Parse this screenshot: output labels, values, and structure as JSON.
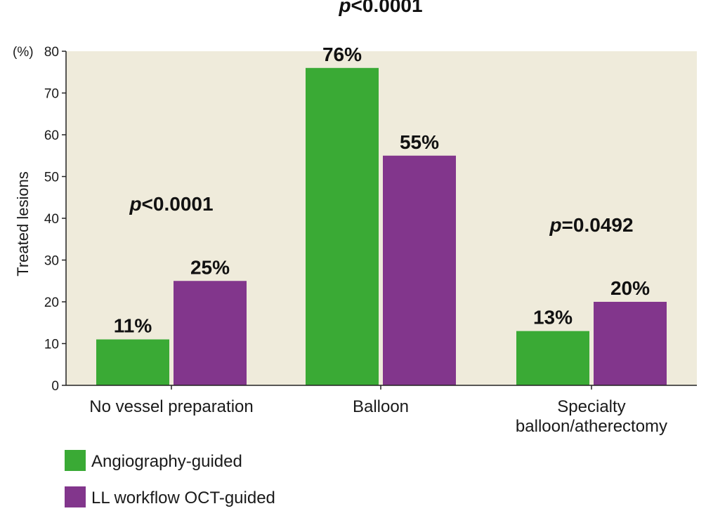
{
  "chart_data": {
    "type": "bar",
    "ylabel": "Treated lesions",
    "y_unit": "(%)",
    "ylim": [
      0,
      80
    ],
    "yticks": [
      0,
      10,
      20,
      30,
      40,
      50,
      60,
      70,
      80
    ],
    "categories": [
      [
        "No vessel preparation"
      ],
      [
        "Balloon"
      ],
      [
        "Specialty",
        "balloon/atherectomy"
      ]
    ],
    "series": [
      {
        "name": "Angiography-guided",
        "color": "#3aaa35",
        "values": [
          11,
          76,
          13
        ],
        "labels": [
          "11%",
          "76%",
          "13%"
        ]
      },
      {
        "name": "LL workflow OCT-guided",
        "color": "#82368c",
        "values": [
          25,
          55,
          20
        ],
        "labels": [
          "25%",
          "55%",
          "20%"
        ]
      }
    ],
    "p_values": [
      {
        "prefix": "p",
        "rest": "<0.0001"
      },
      {
        "prefix": "p",
        "rest": "<0.0001"
      },
      {
        "prefix": "p",
        "rest": "=0.0492"
      }
    ],
    "plot_background": "#efebdb",
    "grid": false,
    "legend_position": "bottom-left"
  }
}
